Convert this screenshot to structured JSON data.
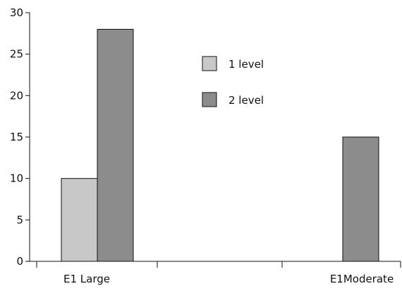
{
  "chart_data": {
    "type": "bar",
    "title": "",
    "xlabel": "",
    "ylabel": "",
    "categories": [
      "E1 Large",
      "",
      "E1Moderate"
    ],
    "series": [
      {
        "name": "1 level",
        "values": [
          10,
          0,
          0
        ],
        "color": "#c8c8c8"
      },
      {
        "name": "2 level",
        "values": [
          28,
          0,
          15
        ],
        "color": "#8c8c8c"
      }
    ],
    "ylim": [
      0,
      30
    ],
    "yticks": [
      0,
      5,
      10,
      15,
      20,
      25,
      30
    ],
    "grid": false,
    "legend": "top-center"
  }
}
